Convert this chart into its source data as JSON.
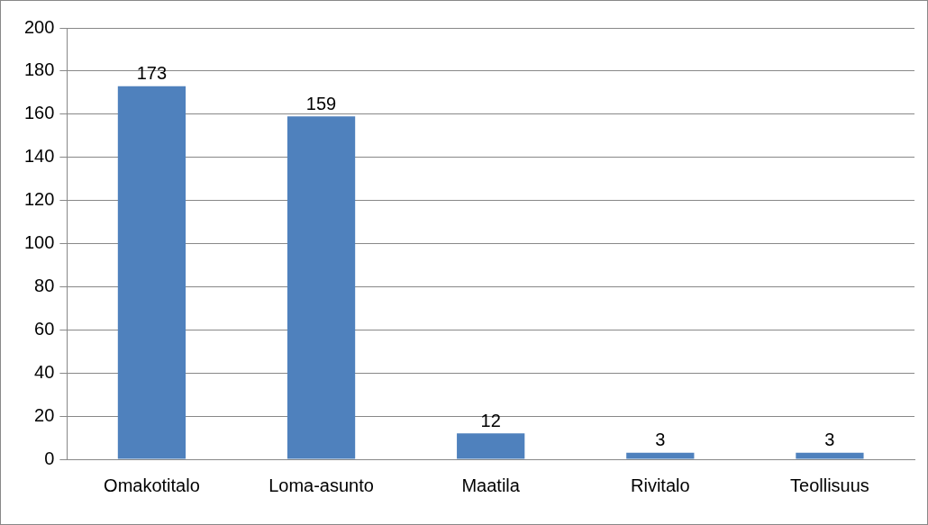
{
  "chart_data": {
    "type": "bar",
    "categories": [
      "Omakotitalo",
      "Loma-asunto",
      "Maatila",
      "Rivitalo",
      "Teollisuus"
    ],
    "values": [
      173,
      159,
      12,
      3,
      3
    ],
    "color": "#4f81bd",
    "ylim": [
      0,
      200
    ],
    "yticks": [
      0,
      20,
      40,
      60,
      80,
      100,
      120,
      140,
      160,
      180,
      200
    ],
    "grid": "y",
    "data_labels": true,
    "legend": false
  }
}
